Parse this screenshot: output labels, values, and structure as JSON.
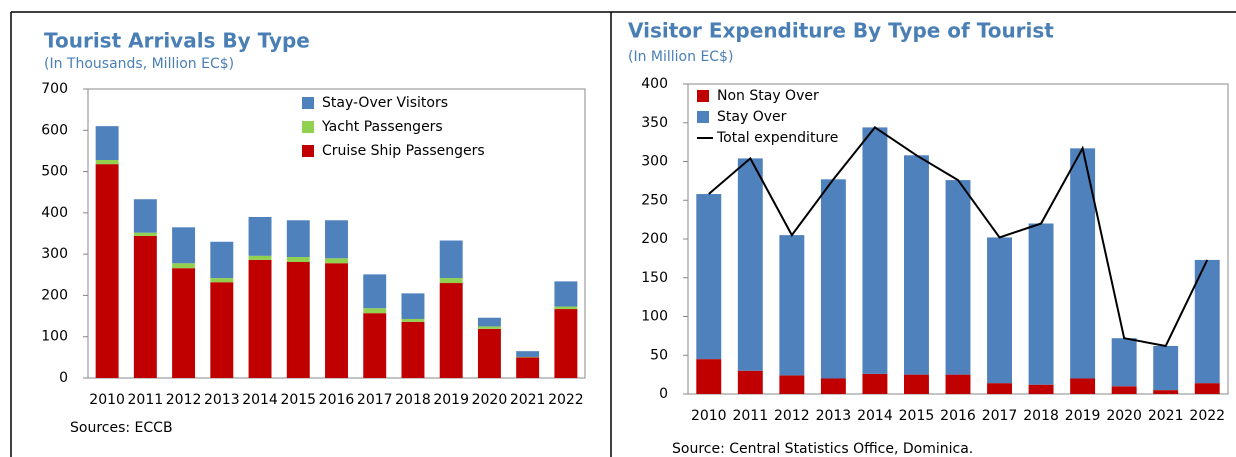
{
  "chart_data": [
    {
      "type": "bar",
      "stacked": true,
      "title": "Tourist Arrivals By Type",
      "subtitle": "(In Thousands, Million EC$)",
      "source": "Sources: ECCB",
      "categories": [
        "2010",
        "2011",
        "2012",
        "2013",
        "2014",
        "2015",
        "2016",
        "2017",
        "2018",
        "2019",
        "2020",
        "2021",
        "2022"
      ],
      "series": [
        {
          "name": "Cruise Ship Passengers",
          "color": "#c00000",
          "values": [
            518,
            344,
            266,
            232,
            286,
            281,
            278,
            157,
            136,
            230,
            119,
            50,
            167
          ]
        },
        {
          "name": "Yacht Passengers",
          "color": "#92d050",
          "values": [
            10,
            8,
            12,
            10,
            10,
            12,
            12,
            12,
            7,
            12,
            6,
            1,
            6
          ]
        },
        {
          "name": "Stay-Over Visitors",
          "color": "#4f81bd",
          "values": [
            82,
            81,
            87,
            88,
            94,
            89,
            92,
            82,
            62,
            91,
            21,
            14,
            61
          ]
        }
      ],
      "ylim": [
        0,
        700
      ],
      "yticks": [
        0,
        100,
        200,
        300,
        400,
        500,
        600,
        700
      ],
      "legend": "upper right"
    },
    {
      "type": "bar",
      "stacked": true,
      "title": "Visitor Expenditure By Type of Tourist",
      "subtitle": "(In Million EC$)",
      "source": "Source: Central Statistics Office, Dominica.",
      "categories": [
        "2010",
        "2011",
        "2012",
        "2013",
        "2014",
        "2015",
        "2016",
        "2017",
        "2018",
        "2019",
        "2020",
        "2021",
        "2022"
      ],
      "series": [
        {
          "name": "Non Stay Over",
          "color": "#c00000",
          "values": [
            45,
            30,
            24,
            20,
            26,
            25,
            25,
            14,
            12,
            20,
            10,
            5,
            14
          ]
        },
        {
          "name": "Stay Over",
          "color": "#4f81bd",
          "values": [
            213,
            274,
            181,
            257,
            318,
            283,
            251,
            188,
            208,
            297,
            62,
            57,
            159
          ]
        },
        {
          "name": "Total expenditure",
          "type": "line",
          "color": "#000000",
          "values": [
            258,
            304,
            205,
            277,
            344,
            308,
            276,
            202,
            220,
            317,
            72,
            62,
            173
          ]
        }
      ],
      "ylim": [
        0,
        400
      ],
      "yticks": [
        0,
        50,
        100,
        150,
        200,
        250,
        300,
        350,
        400
      ],
      "legend": "upper left"
    }
  ]
}
